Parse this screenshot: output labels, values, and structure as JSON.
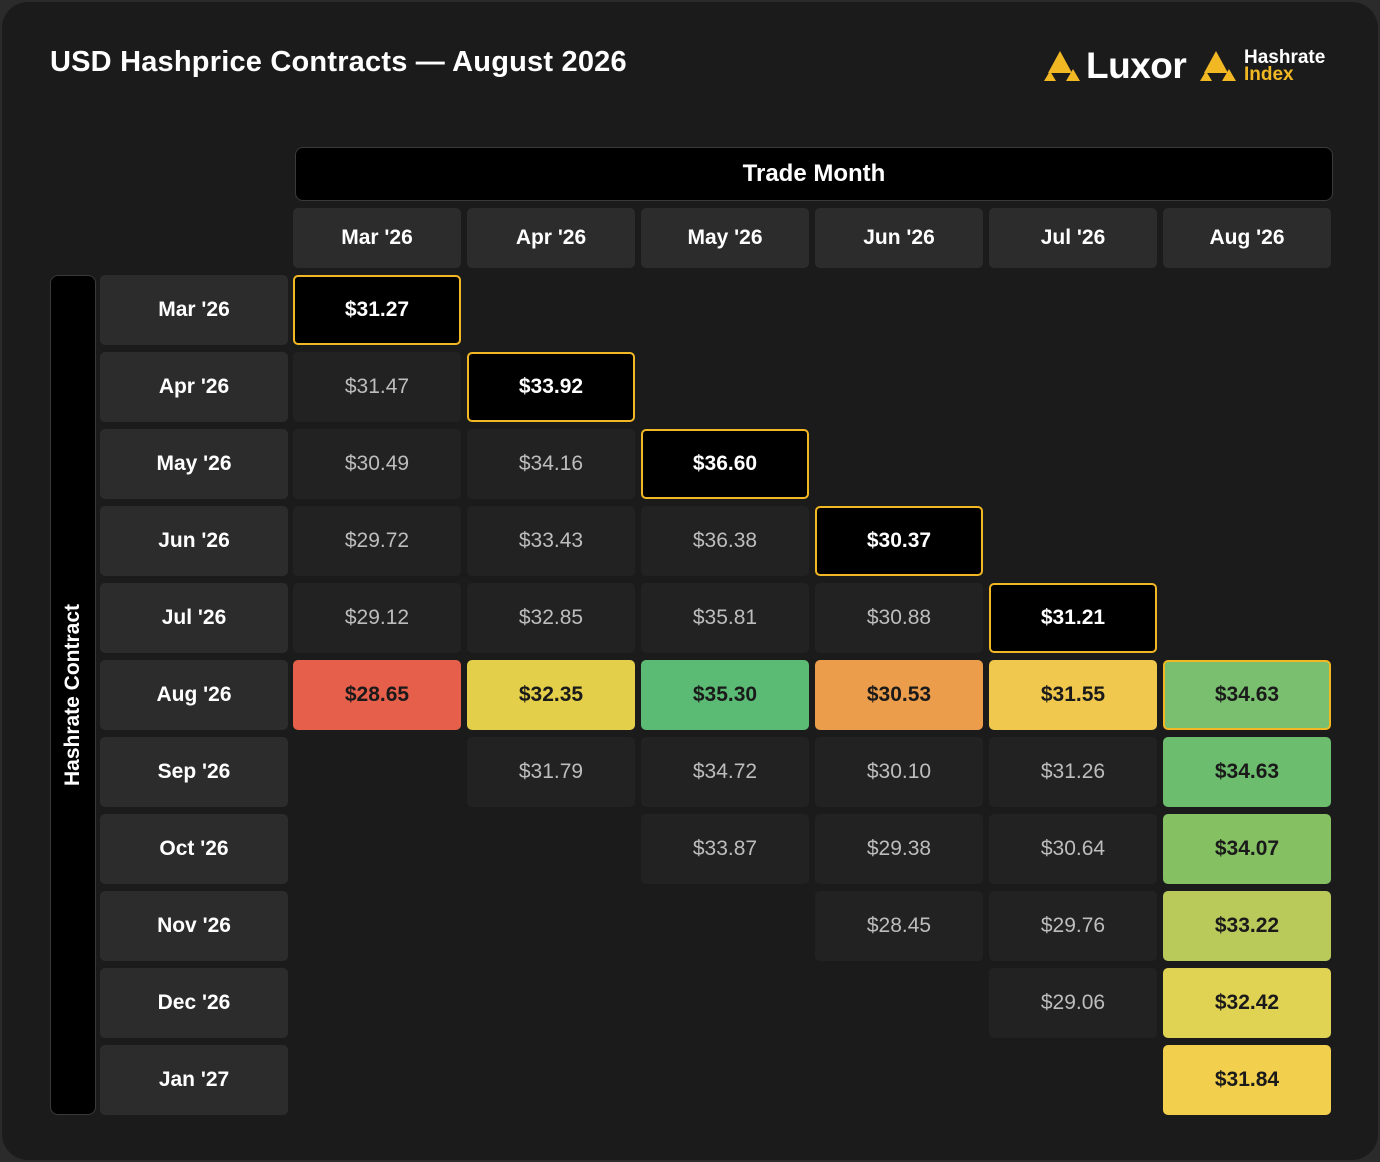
{
  "title": "USD Hashprice Contracts — August 2026",
  "brand": {
    "luxor": "Luxor",
    "index_line1": "Hashrate",
    "index_line2": "Index"
  },
  "colors": {
    "accent": "#f2b824",
    "cell_bg": "#222222",
    "header_bg": "#2c2c2c"
  },
  "chart_data": {
    "type": "table",
    "title": "USD Hashprice Contracts — August 2026",
    "column_axis_label": "Trade Month",
    "row_axis_label": "Hashrate Contract",
    "columns": [
      "Mar '26",
      "Apr '26",
      "May '26",
      "Jun '26",
      "Jul '26",
      "Aug '26"
    ],
    "rows": [
      "Mar '26",
      "Apr '26",
      "May '26",
      "Jun '26",
      "Jul '26",
      "Aug '26",
      "Sep '26",
      "Oct '26",
      "Nov '26",
      "Dec '26",
      "Jan '27"
    ],
    "cells": [
      {
        "r": 0,
        "c": 0,
        "text": "$31.27",
        "style": "diag"
      },
      {
        "r": 1,
        "c": 0,
        "text": "$31.47",
        "style": "plain"
      },
      {
        "r": 1,
        "c": 1,
        "text": "$33.92",
        "style": "diag"
      },
      {
        "r": 2,
        "c": 0,
        "text": "$30.49",
        "style": "plain"
      },
      {
        "r": 2,
        "c": 1,
        "text": "$34.16",
        "style": "plain"
      },
      {
        "r": 2,
        "c": 2,
        "text": "$36.60",
        "style": "diag"
      },
      {
        "r": 3,
        "c": 0,
        "text": "$29.72",
        "style": "plain"
      },
      {
        "r": 3,
        "c": 1,
        "text": "$33.43",
        "style": "plain"
      },
      {
        "r": 3,
        "c": 2,
        "text": "$36.38",
        "style": "plain"
      },
      {
        "r": 3,
        "c": 3,
        "text": "$30.37",
        "style": "diag"
      },
      {
        "r": 4,
        "c": 0,
        "text": "$29.12",
        "style": "plain"
      },
      {
        "r": 4,
        "c": 1,
        "text": "$32.85",
        "style": "plain"
      },
      {
        "r": 4,
        "c": 2,
        "text": "$35.81",
        "style": "plain"
      },
      {
        "r": 4,
        "c": 3,
        "text": "$30.88",
        "style": "plain"
      },
      {
        "r": 4,
        "c": 4,
        "text": "$31.21",
        "style": "diag"
      },
      {
        "r": 5,
        "c": 0,
        "text": "$28.65",
        "style": "heat",
        "color": "#e65f4b"
      },
      {
        "r": 5,
        "c": 1,
        "text": "$32.35",
        "style": "heat",
        "color": "#e3cf4a"
      },
      {
        "r": 5,
        "c": 2,
        "text": "$35.30",
        "style": "heat",
        "color": "#5bbb74"
      },
      {
        "r": 5,
        "c": 3,
        "text": "$30.53",
        "style": "heat",
        "color": "#ec9d4b"
      },
      {
        "r": 5,
        "c": 4,
        "text": "$31.55",
        "style": "heat",
        "color": "#f0c84e"
      },
      {
        "r": 5,
        "c": 5,
        "text": "$34.63",
        "style": "heat ring",
        "color": "#7abf6f"
      },
      {
        "r": 6,
        "c": 1,
        "text": "$31.79",
        "style": "plain"
      },
      {
        "r": 6,
        "c": 2,
        "text": "$34.72",
        "style": "plain"
      },
      {
        "r": 6,
        "c": 3,
        "text": "$30.10",
        "style": "plain"
      },
      {
        "r": 6,
        "c": 4,
        "text": "$31.26",
        "style": "plain"
      },
      {
        "r": 6,
        "c": 5,
        "text": "$34.63",
        "style": "heat",
        "color": "#6cbd6e"
      },
      {
        "r": 7,
        "c": 2,
        "text": "$33.87",
        "style": "plain"
      },
      {
        "r": 7,
        "c": 3,
        "text": "$29.38",
        "style": "plain"
      },
      {
        "r": 7,
        "c": 4,
        "text": "$30.64",
        "style": "plain"
      },
      {
        "r": 7,
        "c": 5,
        "text": "$34.07",
        "style": "heat",
        "color": "#85c063"
      },
      {
        "r": 8,
        "c": 3,
        "text": "$28.45",
        "style": "plain"
      },
      {
        "r": 8,
        "c": 4,
        "text": "$29.76",
        "style": "plain"
      },
      {
        "r": 8,
        "c": 5,
        "text": "$33.22",
        "style": "heat",
        "color": "#b9c95a"
      },
      {
        "r": 9,
        "c": 4,
        "text": "$29.06",
        "style": "plain"
      },
      {
        "r": 9,
        "c": 5,
        "text": "$32.42",
        "style": "heat",
        "color": "#e0d252"
      },
      {
        "r": 10,
        "c": 5,
        "text": "$31.84",
        "style": "heat",
        "color": "#f2cf4c"
      }
    ]
  }
}
